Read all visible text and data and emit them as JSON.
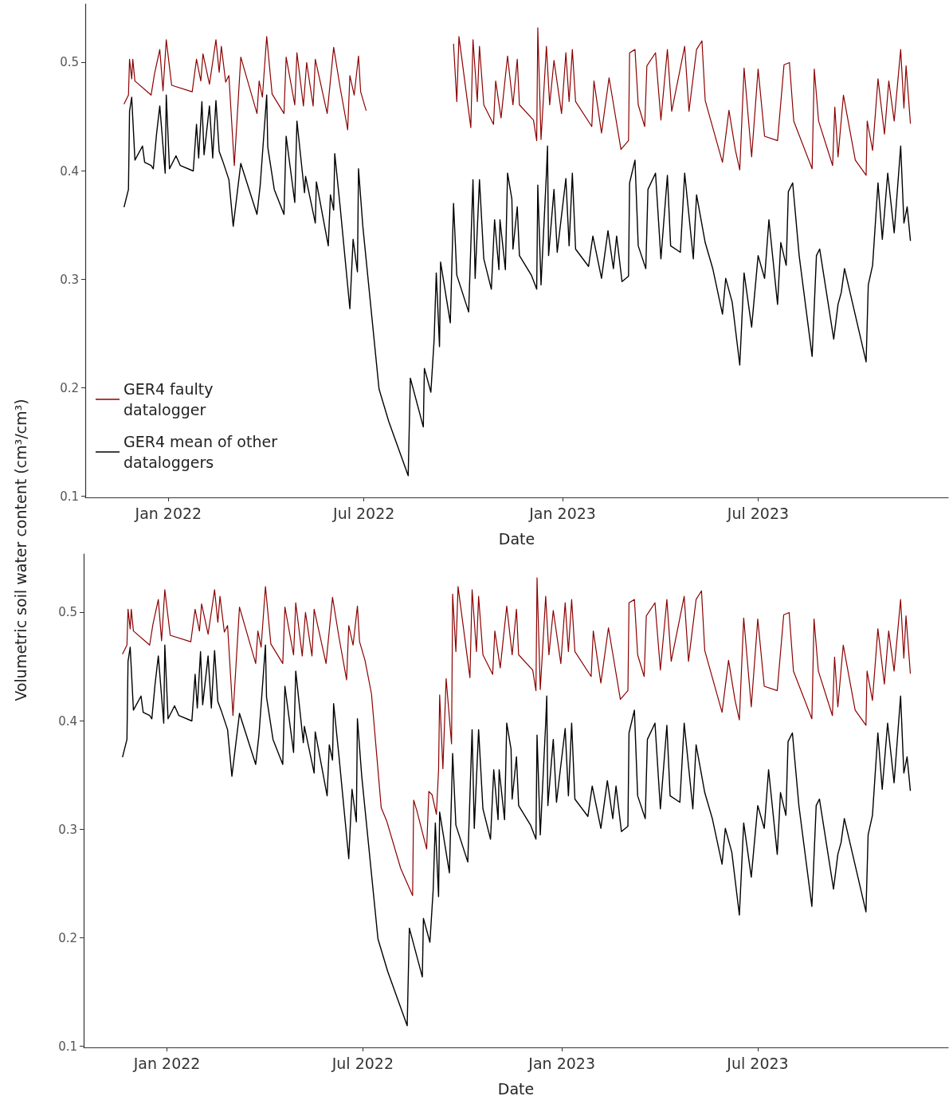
{
  "chart_data": [
    {
      "type": "line",
      "xlabel": "Date",
      "ylabel": "Volumetric soil water content (cm³/cm³)",
      "legend": "bottom left",
      "marker": "none",
      "line_style": "solid",
      "xlim": [
        "2021-10-16",
        "2023-12-24"
      ],
      "xticks": [
        {
          "value": "2022-01-01",
          "label": "Jan 2022"
        },
        {
          "value": "2022-07-01",
          "label": "Jul 2022"
        },
        {
          "value": "2023-01-01",
          "label": "Jan 2023"
        },
        {
          "value": "2023-07-01",
          "label": "Jul 2023"
        }
      ],
      "ylim": [
        0.099,
        0.554
      ],
      "yticks": [
        0.1,
        0.2,
        0.3,
        0.4,
        0.5
      ],
      "series": [
        {
          "name": "GER4 faulty datalogger",
          "color": "#8b0000",
          "x": [
            "2021-11-21",
            "2021-11-25",
            "2021-11-26",
            "2021-11-28",
            "2021-11-29",
            "2021-12-01",
            "2021-12-16",
            "2021-12-19",
            "2021-12-24",
            "2021-12-27",
            "2021-12-30",
            "2022-01-04",
            "2022-01-23",
            "2022-01-27",
            "2022-01-31",
            "2022-02-02",
            "2022-02-08",
            "2022-02-14",
            "2022-02-17",
            "2022-02-19",
            "2022-02-23",
            "2022-02-26",
            "2022-03-03",
            "2022-03-09",
            "2022-03-24",
            "2022-03-26",
            "2022-03-29",
            "2022-04-02",
            "2022-04-07",
            "2022-04-18",
            "2022-04-20",
            "2022-04-28",
            "2022-04-30",
            "2022-05-06",
            "2022-05-09",
            "2022-05-15",
            "2022-05-17",
            "2022-05-28",
            "2022-06-03",
            "2022-06-09",
            "2022-06-16",
            "2022-06-18",
            "2022-06-22",
            "2022-06-26",
            "2022-06-28",
            "2022-07-03",
            "2022-08-15",
            "2022-09-22",
            "2022-09-25",
            "2022-09-27",
            "2022-10-08",
            "2022-10-10",
            "2022-10-14",
            "2022-10-16",
            "2022-10-20",
            "2022-10-29",
            "2022-10-31",
            "2022-11-05",
            "2022-11-11",
            "2022-11-16",
            "2022-11-20",
            "2022-11-22",
            "2022-12-05",
            "2022-12-08",
            "2022-12-09",
            "2022-12-12",
            "2022-12-17",
            "2022-12-20",
            "2022-12-24",
            "2022-12-31",
            "2023-01-04",
            "2023-01-07",
            "2023-01-10",
            "2023-01-13",
            "2023-01-28",
            "2023-01-30",
            "2023-02-06",
            "2023-02-13",
            "2023-02-24",
            "2023-03-03",
            "2023-03-04",
            "2023-03-09",
            "2023-03-12",
            "2023-03-18",
            "2023-03-20",
            "2023-03-28",
            "2023-04-02",
            "2023-04-08",
            "2023-04-12",
            "2023-04-24",
            "2023-04-28",
            "2023-05-05",
            "2023-05-10",
            "2023-05-13",
            "2023-05-29",
            "2023-06-04",
            "2023-06-10",
            "2023-06-14",
            "2023-06-18",
            "2023-06-25",
            "2023-07-01",
            "2023-07-07",
            "2023-07-19",
            "2023-07-25",
            "2023-07-30",
            "2023-08-03",
            "2023-08-20",
            "2023-08-22",
            "2023-08-26",
            "2023-09-08",
            "2023-09-10",
            "2023-09-13",
            "2023-09-18",
            "2023-09-29",
            "2023-10-09",
            "2023-10-10",
            "2023-10-15",
            "2023-10-20",
            "2023-10-26",
            "2023-10-30",
            "2023-11-04",
            "2023-11-10",
            "2023-11-13",
            "2023-11-15",
            "2023-11-19"
          ],
          "values": [
            0.462,
            0.47,
            0.503,
            0.485,
            0.503,
            0.483,
            0.47,
            0.489,
            0.512,
            0.474,
            0.521,
            0.479,
            0.473,
            0.503,
            0.483,
            0.508,
            0.48,
            0.521,
            0.491,
            0.515,
            0.482,
            0.488,
            0.405,
            0.505,
            0.453,
            0.483,
            0.468,
            0.524,
            0.471,
            0.453,
            0.505,
            0.461,
            0.509,
            0.46,
            0.5,
            0.46,
            0.503,
            0.453,
            0.514,
            0.477,
            0.438,
            0.488,
            0.47,
            0.506,
            0.473,
            0.456,
            null,
            0.517,
            0.464,
            0.524,
            0.44,
            0.521,
            0.464,
            0.515,
            0.461,
            0.443,
            0.483,
            0.449,
            0.506,
            0.461,
            0.503,
            0.461,
            0.447,
            0.428,
            0.532,
            0.429,
            0.515,
            0.461,
            0.502,
            0.453,
            0.509,
            0.464,
            0.512,
            0.464,
            0.441,
            0.483,
            0.435,
            0.486,
            0.42,
            0.428,
            0.509,
            0.512,
            0.461,
            0.441,
            0.497,
            0.509,
            0.447,
            0.512,
            0.455,
            0.515,
            0.455,
            0.512,
            0.52,
            0.465,
            0.408,
            0.456,
            0.419,
            0.401,
            0.495,
            0.413,
            0.494,
            0.432,
            0.428,
            0.498,
            0.5,
            0.446,
            0.402,
            0.494,
            0.446,
            0.405,
            0.459,
            0.413,
            0.47,
            0.41,
            0.396,
            0.446,
            0.419,
            0.485,
            0.434,
            0.483,
            0.446,
            0.512,
            0.458,
            0.497,
            0.444
          ]
        },
        {
          "name": "GER4 mean of other dataloggers",
          "color": "#000000",
          "x": [
            "2021-11-21",
            "2021-11-25",
            "2021-11-26",
            "2021-11-28",
            "2021-12-01",
            "2021-12-08",
            "2021-12-10",
            "2021-12-16",
            "2021-12-18",
            "2021-12-21",
            "2021-12-24",
            "2021-12-29",
            "2021-12-30",
            "2022-01-02",
            "2022-01-08",
            "2022-01-12",
            "2022-01-24",
            "2022-01-27",
            "2022-01-29",
            "2022-02-01",
            "2022-02-03",
            "2022-02-08",
            "2022-02-11",
            "2022-02-14",
            "2022-02-17",
            "2022-02-20",
            "2022-02-26",
            "2022-03-02",
            "2022-03-09",
            "2022-03-24",
            "2022-03-27",
            "2022-04-02",
            "2022-04-03",
            "2022-04-09",
            "2022-04-18",
            "2022-04-20",
            "2022-04-28",
            "2022-04-30",
            "2022-05-07",
            "2022-05-08",
            "2022-05-17",
            "2022-05-18",
            "2022-05-29",
            "2022-05-31",
            "2022-06-03",
            "2022-06-04",
            "2022-06-09",
            "2022-06-18",
            "2022-06-21",
            "2022-06-25",
            "2022-06-26",
            "2022-06-30",
            "2022-07-09",
            "2022-07-15",
            "2022-07-24",
            "2022-08-11",
            "2022-08-13",
            "2022-08-25",
            "2022-08-26",
            "2022-09-01",
            "2022-09-04",
            "2022-09-06",
            "2022-09-09",
            "2022-09-10",
            "2022-09-19",
            "2022-09-22",
            "2022-09-25",
            "2022-10-06",
            "2022-10-10",
            "2022-10-12",
            "2022-10-16",
            "2022-10-20",
            "2022-10-27",
            "2022-10-30",
            "2022-11-03",
            "2022-11-04",
            "2022-11-09",
            "2022-11-11",
            "2022-11-15",
            "2022-11-16",
            "2022-11-20",
            "2022-11-22",
            "2022-12-03",
            "2022-12-08",
            "2022-12-09",
            "2022-12-12",
            "2022-12-17",
            "2022-12-18",
            "2022-12-19",
            "2022-12-24",
            "2022-12-27",
            "2023-01-04",
            "2023-01-07",
            "2023-01-10",
            "2023-01-13",
            "2023-01-25",
            "2023-01-29",
            "2023-02-06",
            "2023-02-12",
            "2023-02-17",
            "2023-02-20",
            "2023-02-25",
            "2023-03-03",
            "2023-03-04",
            "2023-03-09",
            "2023-03-12",
            "2023-03-19",
            "2023-03-21",
            "2023-03-28",
            "2023-04-02",
            "2023-04-08",
            "2023-04-11",
            "2023-04-20",
            "2023-04-24",
            "2023-05-02",
            "2023-05-05",
            "2023-05-13",
            "2023-05-20",
            "2023-05-29",
            "2023-06-01",
            "2023-06-07",
            "2023-06-14",
            "2023-06-18",
            "2023-06-25",
            "2023-07-01",
            "2023-07-07",
            "2023-07-11",
            "2023-07-19",
            "2023-07-22",
            "2023-07-27",
            "2023-07-29",
            "2023-08-02",
            "2023-08-08",
            "2023-08-20",
            "2023-08-24",
            "2023-08-27",
            "2023-09-09",
            "2023-09-13",
            "2023-09-16",
            "2023-09-19",
            "2023-09-29",
            "2023-10-09",
            "2023-10-11",
            "2023-10-15",
            "2023-10-20",
            "2023-10-24",
            "2023-10-29",
            "2023-11-04",
            "2023-11-10",
            "2023-11-13",
            "2023-11-16",
            "2023-11-19"
          ],
          "values": [
            0.367,
            0.383,
            0.455,
            0.468,
            0.41,
            0.423,
            0.408,
            0.405,
            0.402,
            0.434,
            0.46,
            0.398,
            0.47,
            0.402,
            0.414,
            0.405,
            0.4,
            0.443,
            0.412,
            0.464,
            0.415,
            0.46,
            0.412,
            0.465,
            0.418,
            0.41,
            0.392,
            0.349,
            0.407,
            0.36,
            0.387,
            0.47,
            0.422,
            0.383,
            0.36,
            0.432,
            0.371,
            0.446,
            0.38,
            0.395,
            0.352,
            0.39,
            0.331,
            0.378,
            0.364,
            0.416,
            0.367,
            0.273,
            0.337,
            0.307,
            0.402,
            0.349,
            0.259,
            0.199,
            0.169,
            0.119,
            0.209,
            0.164,
            0.218,
            0.196,
            0.244,
            0.306,
            0.238,
            0.316,
            0.26,
            0.37,
            0.304,
            0.27,
            0.392,
            0.301,
            0.392,
            0.319,
            0.291,
            0.355,
            0.309,
            0.355,
            0.309,
            0.398,
            0.374,
            0.328,
            0.367,
            0.322,
            0.304,
            0.291,
            0.387,
            0.295,
            0.398,
            0.423,
            0.322,
            0.383,
            0.325,
            0.393,
            0.331,
            0.398,
            0.328,
            0.312,
            0.34,
            0.301,
            0.345,
            0.31,
            0.34,
            0.298,
            0.303,
            0.389,
            0.41,
            0.331,
            0.31,
            0.383,
            0.398,
            0.319,
            0.396,
            0.331,
            0.325,
            0.398,
            0.319,
            0.378,
            0.334,
            0.31,
            0.268,
            0.301,
            0.279,
            0.221,
            0.306,
            0.256,
            0.322,
            0.301,
            0.355,
            0.277,
            0.334,
            0.313,
            0.381,
            0.389,
            0.322,
            0.229,
            0.322,
            0.328,
            0.245,
            0.277,
            0.288,
            0.31,
            0.267,
            0.224,
            0.295,
            0.313,
            0.389,
            0.337,
            0.398,
            0.343,
            0.423,
            0.352,
            0.367,
            0.336
          ]
        }
      ]
    },
    {
      "type": "line",
      "xlabel": "Date",
      "marker": "none",
      "line_style": "solid",
      "xlim": [
        "2021-10-16",
        "2023-12-24"
      ],
      "xticks": [
        {
          "value": "2022-01-01",
          "label": "Jan 2022"
        },
        {
          "value": "2022-07-01",
          "label": "Jul 2022"
        },
        {
          "value": "2023-01-01",
          "label": "Jan 2023"
        },
        {
          "value": "2023-07-01",
          "label": "Jul 2023"
        }
      ],
      "ylim": [
        0.099,
        0.554
      ],
      "yticks": [
        0.1,
        0.2,
        0.3,
        0.4,
        0.5
      ],
      "series": [
        {
          "color": "#8b0000",
          "x": [
            "2021-11-21",
            "2021-11-25",
            "2021-11-26",
            "2021-11-28",
            "2021-11-29",
            "2021-12-01",
            "2021-12-16",
            "2021-12-19",
            "2021-12-24",
            "2021-12-27",
            "2021-12-30",
            "2022-01-04",
            "2022-01-23",
            "2022-01-27",
            "2022-01-31",
            "2022-02-02",
            "2022-02-08",
            "2022-02-14",
            "2022-02-17",
            "2022-02-19",
            "2022-02-23",
            "2022-02-26",
            "2022-03-03",
            "2022-03-09",
            "2022-03-24",
            "2022-03-26",
            "2022-03-29",
            "2022-04-02",
            "2022-04-07",
            "2022-04-18",
            "2022-04-20",
            "2022-04-28",
            "2022-04-30",
            "2022-05-06",
            "2022-05-09",
            "2022-05-15",
            "2022-05-17",
            "2022-05-28",
            "2022-06-03",
            "2022-06-09",
            "2022-06-16",
            "2022-06-18",
            "2022-06-22",
            "2022-06-26",
            "2022-06-28",
            "2022-07-03",
            "2022-07-09",
            "2022-07-18",
            "2022-07-23",
            "2022-08-05",
            "2022-08-16",
            "2022-08-17",
            "2022-08-20",
            "2022-08-29",
            "2022-08-31",
            "2022-09-03",
            "2022-09-07",
            "2022-09-09",
            "2022-09-10",
            "2022-09-13",
            "2022-09-16",
            "2022-09-21",
            "2022-09-22",
            "2022-09-25",
            "2022-09-27",
            "2022-10-08",
            "2022-10-10",
            "2022-10-14",
            "2022-10-16",
            "2022-10-20",
            "2022-10-29",
            "2022-10-31",
            "2022-11-05",
            "2022-11-11",
            "2022-11-16",
            "2022-11-20",
            "2022-11-22",
            "2022-12-05",
            "2022-12-08",
            "2022-12-09",
            "2022-12-12",
            "2022-12-17",
            "2022-12-20",
            "2022-12-24",
            "2022-12-31",
            "2023-01-04",
            "2023-01-07",
            "2023-01-10",
            "2023-01-13",
            "2023-01-28",
            "2023-01-30",
            "2023-02-06",
            "2023-02-13",
            "2023-02-24",
            "2023-03-03",
            "2023-03-04",
            "2023-03-09",
            "2023-03-12",
            "2023-03-18",
            "2023-03-20",
            "2023-03-28",
            "2023-04-02",
            "2023-04-08",
            "2023-04-12",
            "2023-04-24",
            "2023-04-28",
            "2023-05-05",
            "2023-05-10",
            "2023-05-13",
            "2023-05-29",
            "2023-06-04",
            "2023-06-10",
            "2023-06-14",
            "2023-06-18",
            "2023-06-25",
            "2023-07-01",
            "2023-07-07",
            "2023-07-19",
            "2023-07-25",
            "2023-07-30",
            "2023-08-03",
            "2023-08-20",
            "2023-08-22",
            "2023-08-26",
            "2023-09-08",
            "2023-09-10",
            "2023-09-13",
            "2023-09-18",
            "2023-09-29",
            "2023-10-09",
            "2023-10-10",
            "2023-10-15",
            "2023-10-20",
            "2023-10-26",
            "2023-10-30",
            "2023-11-04",
            "2023-11-10",
            "2023-11-13",
            "2023-11-15",
            "2023-11-19"
          ],
          "values": [
            0.462,
            0.47,
            0.503,
            0.485,
            0.503,
            0.483,
            0.47,
            0.489,
            0.512,
            0.474,
            0.521,
            0.479,
            0.473,
            0.503,
            0.483,
            0.508,
            0.48,
            0.521,
            0.491,
            0.515,
            0.482,
            0.488,
            0.405,
            0.505,
            0.453,
            0.483,
            0.468,
            0.524,
            0.471,
            0.453,
            0.505,
            0.461,
            0.509,
            0.46,
            0.5,
            0.46,
            0.503,
            0.453,
            0.514,
            0.477,
            0.438,
            0.488,
            0.47,
            0.506,
            0.473,
            0.456,
            0.425,
            0.32,
            0.308,
            0.264,
            0.239,
            0.327,
            0.317,
            0.282,
            0.335,
            0.332,
            0.314,
            0.355,
            0.424,
            0.356,
            0.439,
            0.379,
            0.517,
            0.464,
            0.524,
            0.44,
            0.521,
            0.464,
            0.515,
            0.461,
            0.443,
            0.483,
            0.449,
            0.506,
            0.461,
            0.503,
            0.461,
            0.447,
            0.428,
            0.532,
            0.429,
            0.515,
            0.461,
            0.502,
            0.453,
            0.509,
            0.464,
            0.512,
            0.464,
            0.441,
            0.483,
            0.435,
            0.486,
            0.42,
            0.428,
            0.509,
            0.512,
            0.461,
            0.441,
            0.497,
            0.509,
            0.447,
            0.512,
            0.455,
            0.515,
            0.455,
            0.512,
            0.52,
            0.465,
            0.408,
            0.456,
            0.419,
            0.401,
            0.495,
            0.413,
            0.494,
            0.432,
            0.428,
            0.498,
            0.5,
            0.446,
            0.402,
            0.494,
            0.446,
            0.405,
            0.459,
            0.413,
            0.47,
            0.41,
            0.396,
            0.446,
            0.419,
            0.485,
            0.434,
            0.483,
            0.446,
            0.512,
            0.458,
            0.497,
            0.444
          ]
        },
        {
          "color": "#000000",
          "x": [
            "2021-11-21",
            "2021-11-25",
            "2021-11-26",
            "2021-11-28",
            "2021-12-01",
            "2021-12-08",
            "2021-12-10",
            "2021-12-16",
            "2021-12-18",
            "2021-12-21",
            "2021-12-24",
            "2021-12-29",
            "2021-12-30",
            "2022-01-02",
            "2022-01-08",
            "2022-01-12",
            "2022-01-24",
            "2022-01-27",
            "2022-01-29",
            "2022-02-01",
            "2022-02-03",
            "2022-02-08",
            "2022-02-11",
            "2022-02-14",
            "2022-02-17",
            "2022-02-20",
            "2022-02-26",
            "2022-03-02",
            "2022-03-09",
            "2022-03-24",
            "2022-03-27",
            "2022-04-02",
            "2022-04-03",
            "2022-04-09",
            "2022-04-18",
            "2022-04-20",
            "2022-04-28",
            "2022-04-30",
            "2022-05-07",
            "2022-05-08",
            "2022-05-17",
            "2022-05-18",
            "2022-05-29",
            "2022-05-31",
            "2022-06-03",
            "2022-06-04",
            "2022-06-09",
            "2022-06-18",
            "2022-06-21",
            "2022-06-25",
            "2022-06-26",
            "2022-06-30",
            "2022-07-09",
            "2022-07-15",
            "2022-07-24",
            "2022-08-11",
            "2022-08-13",
            "2022-08-25",
            "2022-08-26",
            "2022-09-01",
            "2022-09-04",
            "2022-09-06",
            "2022-09-09",
            "2022-09-10",
            "2022-09-19",
            "2022-09-22",
            "2022-09-25",
            "2022-10-06",
            "2022-10-10",
            "2022-10-12",
            "2022-10-16",
            "2022-10-20",
            "2022-10-27",
            "2022-10-30",
            "2022-11-03",
            "2022-11-04",
            "2022-11-09",
            "2022-11-11",
            "2022-11-15",
            "2022-11-16",
            "2022-11-20",
            "2022-11-22",
            "2022-12-03",
            "2022-12-08",
            "2022-12-09",
            "2022-12-12",
            "2022-12-17",
            "2022-12-18",
            "2022-12-19",
            "2022-12-24",
            "2022-12-27",
            "2023-01-04",
            "2023-01-07",
            "2023-01-10",
            "2023-01-13",
            "2023-01-25",
            "2023-01-29",
            "2023-02-06",
            "2023-02-12",
            "2023-02-17",
            "2023-02-20",
            "2023-02-25",
            "2023-03-03",
            "2023-03-04",
            "2023-03-09",
            "2023-03-12",
            "2023-03-19",
            "2023-03-21",
            "2023-03-28",
            "2023-04-02",
            "2023-04-08",
            "2023-04-11",
            "2023-04-20",
            "2023-04-24",
            "2023-05-02",
            "2023-05-05",
            "2023-05-13",
            "2023-05-20",
            "2023-05-29",
            "2023-06-01",
            "2023-06-07",
            "2023-06-14",
            "2023-06-18",
            "2023-06-25",
            "2023-07-01",
            "2023-07-07",
            "2023-07-11",
            "2023-07-19",
            "2023-07-22",
            "2023-07-27",
            "2023-07-29",
            "2023-08-02",
            "2023-08-08",
            "2023-08-20",
            "2023-08-24",
            "2023-08-27",
            "2023-09-09",
            "2023-09-13",
            "2023-09-16",
            "2023-09-19",
            "2023-09-29",
            "2023-10-09",
            "2023-10-11",
            "2023-10-15",
            "2023-10-20",
            "2023-10-24",
            "2023-10-29",
            "2023-11-04",
            "2023-11-10",
            "2023-11-13",
            "2023-11-16",
            "2023-11-19"
          ],
          "values": [
            0.367,
            0.383,
            0.455,
            0.468,
            0.41,
            0.423,
            0.408,
            0.405,
            0.402,
            0.434,
            0.46,
            0.398,
            0.47,
            0.402,
            0.414,
            0.405,
            0.4,
            0.443,
            0.412,
            0.464,
            0.415,
            0.46,
            0.412,
            0.465,
            0.418,
            0.41,
            0.392,
            0.349,
            0.407,
            0.36,
            0.387,
            0.47,
            0.422,
            0.383,
            0.36,
            0.432,
            0.371,
            0.446,
            0.38,
            0.395,
            0.352,
            0.39,
            0.331,
            0.378,
            0.364,
            0.416,
            0.367,
            0.273,
            0.337,
            0.307,
            0.402,
            0.349,
            0.259,
            0.199,
            0.169,
            0.119,
            0.209,
            0.164,
            0.218,
            0.196,
            0.244,
            0.306,
            0.238,
            0.316,
            0.26,
            0.37,
            0.304,
            0.27,
            0.392,
            0.301,
            0.392,
            0.319,
            0.291,
            0.355,
            0.309,
            0.355,
            0.309,
            0.398,
            0.374,
            0.328,
            0.367,
            0.322,
            0.304,
            0.291,
            0.387,
            0.295,
            0.398,
            0.423,
            0.322,
            0.383,
            0.325,
            0.393,
            0.331,
            0.398,
            0.328,
            0.312,
            0.34,
            0.301,
            0.345,
            0.31,
            0.34,
            0.298,
            0.303,
            0.389,
            0.41,
            0.331,
            0.31,
            0.383,
            0.398,
            0.319,
            0.396,
            0.331,
            0.325,
            0.398,
            0.319,
            0.378,
            0.334,
            0.31,
            0.268,
            0.301,
            0.279,
            0.221,
            0.306,
            0.256,
            0.322,
            0.301,
            0.355,
            0.277,
            0.334,
            0.313,
            0.381,
            0.389,
            0.322,
            0.229,
            0.322,
            0.328,
            0.245,
            0.277,
            0.288,
            0.31,
            0.267,
            0.224,
            0.295,
            0.313,
            0.389,
            0.337,
            0.398,
            0.343,
            0.423,
            0.352,
            0.367,
            0.336
          ]
        }
      ]
    }
  ]
}
